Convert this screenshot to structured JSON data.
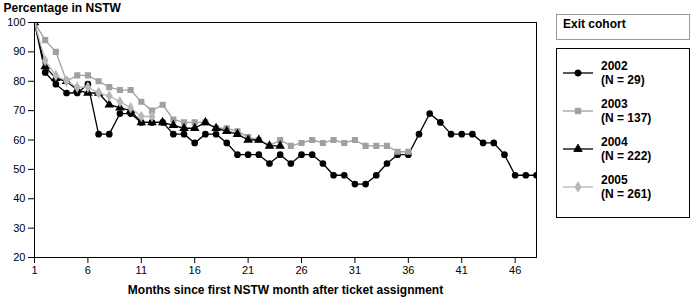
{
  "chart_data": {
    "type": "line",
    "xlabel": "Months since first NSTW month after ticket assignment",
    "ylabel": "Percentage in NSTW",
    "legend_title": "Exit cohort",
    "legend": "right",
    "grid": false,
    "x": [
      1,
      2,
      3,
      4,
      5,
      6,
      7,
      8,
      9,
      10,
      11,
      12,
      13,
      14,
      15,
      16,
      17,
      18,
      19,
      20,
      21,
      22,
      23,
      24,
      25,
      26,
      27,
      28,
      29,
      30,
      31,
      32,
      33,
      34,
      35,
      36,
      37,
      38,
      39,
      40,
      41,
      42,
      43,
      44,
      45,
      46,
      47,
      48
    ],
    "xlim": [
      1,
      48
    ],
    "xticks": [
      1,
      6,
      11,
      16,
      21,
      26,
      31,
      36,
      41,
      46
    ],
    "ylim": [
      20,
      100
    ],
    "yticks": [
      20,
      30,
      40,
      50,
      60,
      70,
      80,
      90,
      100
    ],
    "series": [
      {
        "name": "2002 (N = 29)",
        "color": "#000000",
        "marker": "circle",
        "values": [
          100,
          83,
          79,
          76,
          76,
          79,
          62,
          62,
          69,
          69,
          66,
          66,
          66,
          62,
          62,
          59,
          62,
          62,
          59,
          55,
          55,
          55,
          52,
          55,
          52,
          55,
          55,
          52,
          48,
          48,
          45,
          45,
          48,
          52,
          55,
          55,
          62,
          69,
          66,
          62,
          62,
          62,
          59,
          59,
          55,
          48,
          48,
          48
        ]
      },
      {
        "name": "2003 (N = 137)",
        "color": "#a0a0a0",
        "marker": "square",
        "values": [
          100,
          94,
          90,
          80,
          82,
          82,
          80,
          78,
          77,
          77,
          73,
          70,
          72,
          67,
          66,
          66,
          66,
          64,
          64,
          63,
          61,
          60,
          58,
          60,
          58,
          59,
          60,
          59,
          60,
          59,
          60,
          58,
          58,
          58,
          56,
          56,
          null,
          null,
          null,
          null,
          null,
          null,
          null,
          null,
          null,
          null,
          null,
          null
        ]
      },
      {
        "name": "2004 (N = 222)",
        "color": "#000000",
        "marker": "triangle",
        "values": [
          100,
          85,
          81,
          80,
          77,
          76,
          76,
          72,
          71,
          70,
          66,
          66,
          66,
          65,
          64,
          64,
          66,
          64,
          63,
          62,
          60,
          60,
          58,
          58,
          null,
          null,
          null,
          null,
          null,
          null,
          null,
          null,
          null,
          null,
          null,
          null,
          null,
          null,
          null,
          null,
          null,
          null,
          null,
          null,
          null,
          null,
          null,
          null
        ]
      },
      {
        "name": "2005 (N = 261)",
        "color": "#b8b8b8",
        "marker": "diamond",
        "values": [
          100,
          87,
          82,
          80,
          78,
          78,
          76,
          75,
          73,
          71,
          68,
          68,
          null,
          null,
          null,
          null,
          null,
          null,
          null,
          null,
          null,
          null,
          null,
          null,
          null,
          null,
          null,
          null,
          null,
          null,
          null,
          null,
          null,
          null,
          null,
          null,
          null,
          null,
          null,
          null,
          null,
          null,
          null,
          null,
          null,
          null,
          null,
          null
        ]
      }
    ]
  }
}
